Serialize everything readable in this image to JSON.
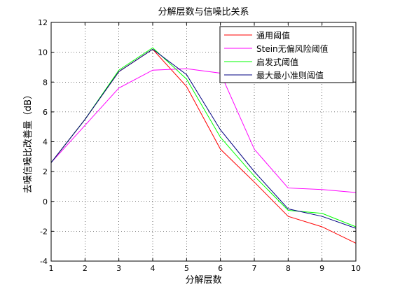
{
  "chart_data": {
    "type": "line",
    "title": "分解层数与信噪比关系",
    "xlabel": "分解层数",
    "ylabel": "去噪信噪比改善量（dB）",
    "xlim": [
      1,
      10
    ],
    "ylim": [
      -4,
      12
    ],
    "xticks": [
      1,
      2,
      3,
      4,
      5,
      6,
      7,
      8,
      9,
      10
    ],
    "yticks": [
      -4,
      -2,
      0,
      2,
      4,
      6,
      8,
      10,
      12
    ],
    "grid": true,
    "legend_position": "top-right",
    "x": [
      1,
      2,
      3,
      4,
      5,
      6,
      7,
      8,
      9,
      10
    ],
    "series": [
      {
        "name": "通用阈值",
        "color": "#ff0000",
        "values": [
          2.6,
          5.5,
          8.7,
          10.2,
          7.7,
          3.5,
          1.3,
          -1.0,
          -1.7,
          -2.8
        ]
      },
      {
        "name": "Stein无偏风险阈值",
        "color": "#ff00ff",
        "values": [
          2.6,
          5.1,
          7.6,
          8.8,
          8.9,
          8.6,
          3.5,
          0.9,
          0.8,
          0.6
        ]
      },
      {
        "name": "启发式阈值",
        "color": "#00ff00",
        "values": [
          2.6,
          5.5,
          8.8,
          10.3,
          8.2,
          4.3,
          1.7,
          -0.6,
          -0.8,
          -1.7
        ]
      },
      {
        "name": "最大最小准则阈值",
        "color": "#000080",
        "values": [
          2.6,
          5.5,
          8.7,
          10.2,
          8.5,
          4.8,
          2.0,
          -0.5,
          -1.0,
          -1.8
        ]
      }
    ]
  }
}
